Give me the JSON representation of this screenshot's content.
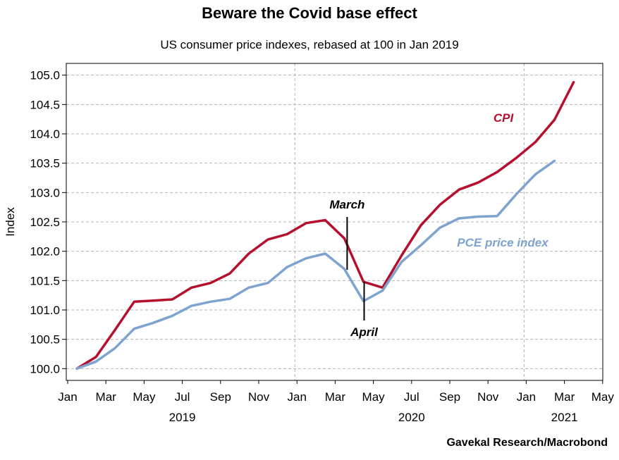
{
  "chart_data": {
    "type": "line",
    "title": "Beware the Covid base effect",
    "subtitle": "US consumer price indexes, rebased at 100 in Jan 2019",
    "ylabel": "Index",
    "xlabel": "",
    "ylim": [
      99.8,
      105.2
    ],
    "yticks": [
      100.0,
      100.5,
      101.0,
      101.5,
      102.0,
      102.5,
      103.0,
      103.5,
      104.0,
      104.5,
      105.0
    ],
    "x_tick_labels": [
      "Jan",
      "Mar",
      "May",
      "Jul",
      "Sep",
      "Nov",
      "Jan",
      "Mar",
      "May",
      "Jul",
      "Sep",
      "Nov",
      "Jan",
      "Mar",
      "May"
    ],
    "year_labels": [
      {
        "label": "2019",
        "month_index": 6
      },
      {
        "label": "2020",
        "month_index": 18
      },
      {
        "label": "2021",
        "month_index": 26
      }
    ],
    "grid": true,
    "source": "Gavekal Research/Macrobond",
    "series": [
      {
        "name": "CPI",
        "color": "#b5112e",
        "values": [
          100.0,
          100.2,
          100.66,
          101.14,
          101.16,
          101.18,
          101.38,
          101.46,
          101.62,
          101.96,
          102.2,
          102.29,
          102.48,
          102.53,
          102.22,
          101.48,
          101.38,
          101.93,
          102.44,
          102.79,
          103.05,
          103.17,
          103.35,
          103.59,
          103.86,
          104.24,
          104.88
        ]
      },
      {
        "name": "PCE price index",
        "color": "#7ea3cf",
        "values": [
          100.0,
          100.12,
          100.35,
          100.68,
          100.78,
          100.9,
          101.07,
          101.14,
          101.19,
          101.38,
          101.46,
          101.73,
          101.88,
          101.96,
          101.7,
          101.15,
          101.33,
          101.82,
          102.1,
          102.4,
          102.56,
          102.59,
          102.6,
          102.97,
          103.31,
          103.54
        ]
      }
    ],
    "annotations": [
      {
        "label": "March",
        "month_index": 14
      },
      {
        "label": "April",
        "month_index": 15
      }
    ]
  }
}
